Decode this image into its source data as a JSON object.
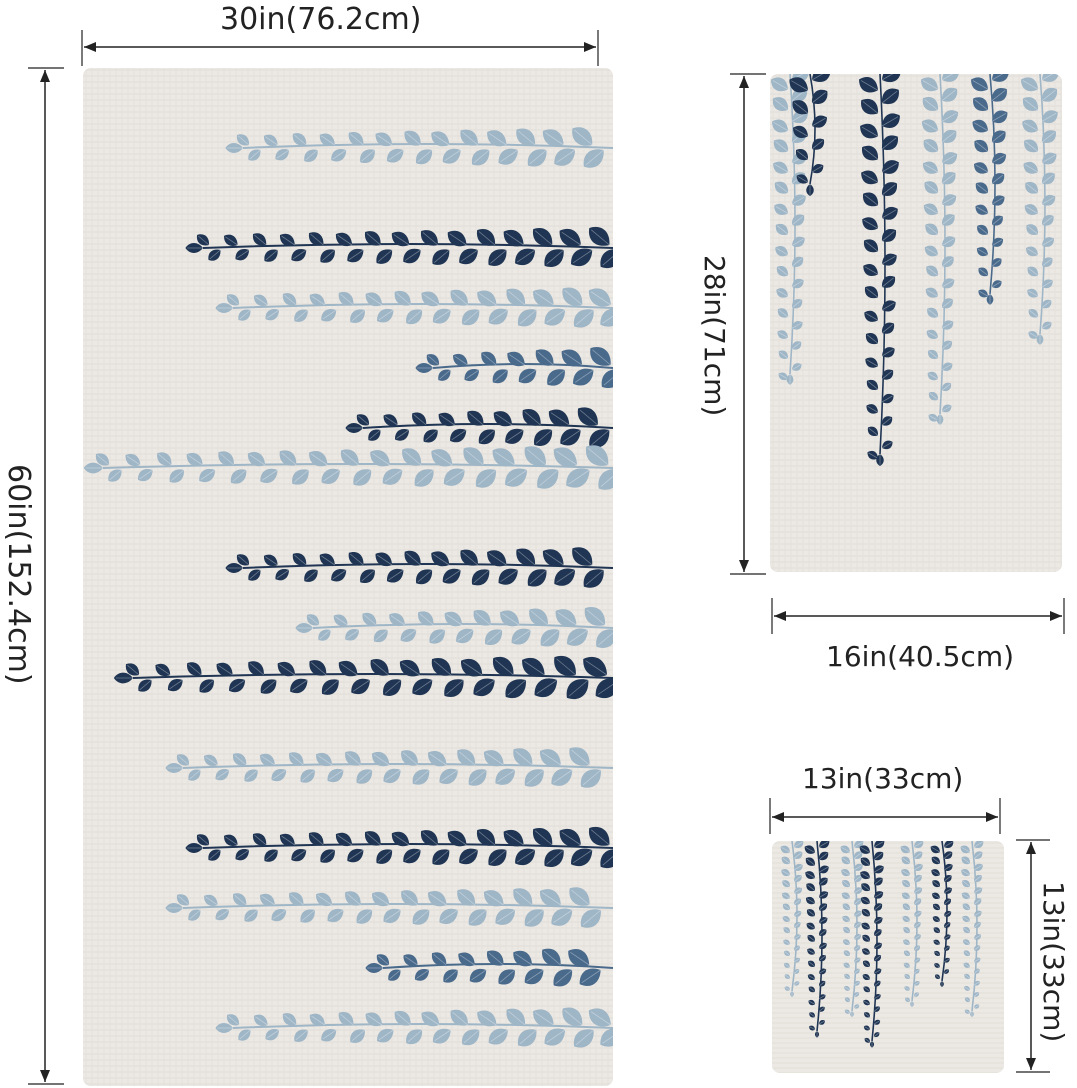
{
  "product": {
    "colors": {
      "background": "#ffffff",
      "linen": "#ece9e4",
      "leaf_dark": "#1f3553",
      "leaf_mid": "#4a6a8c",
      "leaf_light": "#9fb6c7",
      "line": "#222222"
    },
    "bath_towel": {
      "width_label": "30in(76.2cm)",
      "height_label": "60in(152.4cm)"
    },
    "hand_towel": {
      "height_label": "28in(71cm)",
      "width_label": "16in(40.5cm)"
    },
    "washcloth": {
      "width_label": "13in(33cm)",
      "height_label": "13in(33cm)"
    }
  }
}
